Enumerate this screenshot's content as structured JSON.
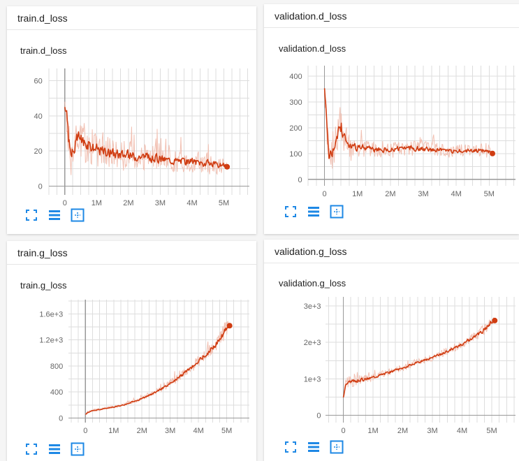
{
  "panels": [
    {
      "header": "train.d_loss",
      "chart_data": {
        "type": "line",
        "title": "train.d_loss",
        "xlim": [
          -500000,
          5800000
        ],
        "ylim": [
          -5,
          67
        ],
        "xticks": [
          0,
          1000000,
          2000000,
          3000000,
          4000000,
          5000000
        ],
        "xtick_labels": [
          "0",
          "1M",
          "2M",
          "3M",
          "4M",
          "5M"
        ],
        "yticks": [
          0,
          20,
          40,
          60
        ],
        "ytick_labels": [
          "0",
          "20",
          "40",
          "60"
        ],
        "grid": true,
        "series": [
          {
            "x": [
              0,
              50000,
              100000,
              150000,
              200000,
              300000,
              400000,
              500000,
              600000,
              700000,
              800000,
              900000,
              1000000,
              1200000,
              1400000,
              1600000,
              1800000,
              2000000,
              2200000,
              2400000,
              2600000,
              2800000,
              3000000,
              3200000,
              3400000,
              3600000,
              3800000,
              4000000,
              4200000,
              4400000,
              4600000,
              4800000,
              5000000,
              5100000
            ],
            "y": [
              46,
              40,
              30,
              20,
              17,
              22,
              28,
              27,
              25,
              24,
              23,
              22,
              21,
              20,
              19,
              18.5,
              18,
              17.5,
              17,
              17,
              16.5,
              16,
              15.5,
              15,
              14.5,
              14.5,
              14,
              14,
              13.5,
              13,
              12.5,
              12,
              11.5,
              11
            ],
            "noise": [
              2,
              10,
              12,
              12,
              10,
              10,
              9,
              9,
              9,
              8,
              8,
              8,
              8,
              7,
              7,
              7,
              7,
              7,
              6,
              6,
              6,
              6,
              6,
              5,
              5,
              5,
              5,
              5,
              5,
              5,
              5,
              4,
              4,
              2
            ],
            "color": "#d03d12"
          }
        ]
      }
    },
    {
      "header": "validation.d_loss",
      "chart_data": {
        "type": "line",
        "title": "validation.d_loss",
        "xlim": [
          -500000,
          5800000
        ],
        "ylim": [
          -25,
          440
        ],
        "xticks": [
          0,
          1000000,
          2000000,
          3000000,
          4000000,
          5000000
        ],
        "xtick_labels": [
          "0",
          "1M",
          "2M",
          "3M",
          "4M",
          "5M"
        ],
        "yticks": [
          0,
          100,
          200,
          300,
          400
        ],
        "ytick_labels": [
          "0",
          "100",
          "200",
          "300",
          "400"
        ],
        "grid": true,
        "series": [
          {
            "x": [
              0,
              50000,
              100000,
              150000,
              200000,
              300000,
              400000,
              500000,
              600000,
              700000,
              800000,
              900000,
              1000000,
              1200000,
              1400000,
              1600000,
              1800000,
              2000000,
              2200000,
              2400000,
              2600000,
              2800000,
              3000000,
              3200000,
              3400000,
              3600000,
              3800000,
              4000000,
              4200000,
              4400000,
              4600000,
              4800000,
              5000000,
              5100000
            ],
            "y": [
              350,
              250,
              150,
              90,
              80,
              130,
              180,
              200,
              160,
              140,
              130,
              125,
              125,
              120,
              118,
              115,
              115,
              115,
              118,
              120,
              122,
              120,
              118,
              115,
              115,
              113,
              110,
              108,
              110,
              112,
              110,
              112,
              108,
              100
            ],
            "noise": [
              10,
              60,
              80,
              80,
              70,
              70,
              70,
              80,
              60,
              50,
              45,
              40,
              35,
              30,
              28,
              26,
              25,
              25,
              25,
              25,
              24,
              23,
              22,
              22,
              21,
              20,
              20,
              20,
              20,
              20,
              20,
              20,
              20,
              5
            ],
            "color": "#d03d12"
          }
        ]
      }
    },
    {
      "header": "train.g_loss",
      "chart_data": {
        "type": "line",
        "title": "train.g_loss",
        "xlim": [
          -600000,
          5800000
        ],
        "ylim": [
          -70,
          1820
        ],
        "xticks": [
          0,
          1000000,
          2000000,
          3000000,
          4000000,
          5000000
        ],
        "xtick_labels": [
          "0",
          "1M",
          "2M",
          "3M",
          "4M",
          "5M"
        ],
        "yticks": [
          0,
          400,
          800,
          1200,
          1600
        ],
        "ytick_labels": [
          "0",
          "400",
          "800",
          "1.2e+3",
          "1.6e+3"
        ],
        "grid": true,
        "series": [
          {
            "x": [
              0,
              100000,
              200000,
              400000,
              600000,
              800000,
              1000000,
              1200000,
              1400000,
              1600000,
              1800000,
              2000000,
              2200000,
              2400000,
              2600000,
              2800000,
              3000000,
              3200000,
              3400000,
              3600000,
              3800000,
              4000000,
              4200000,
              4400000,
              4600000,
              4800000,
              4900000,
              5000000,
              5100000
            ],
            "y": [
              60,
              90,
              110,
              125,
              140,
              155,
              170,
              185,
              210,
              240,
              270,
              300,
              340,
              380,
              430,
              480,
              540,
              600,
              660,
              730,
              800,
              880,
              960,
              1040,
              1130,
              1240,
              1330,
              1400,
              1420
            ],
            "noise": [
              10,
              15,
              15,
              15,
              15,
              15,
              15,
              15,
              18,
              20,
              22,
              25,
              28,
              30,
              35,
              40,
              45,
              50,
              55,
              60,
              65,
              70,
              75,
              80,
              90,
              100,
              110,
              100,
              20
            ],
            "color": "#d03d12"
          }
        ]
      }
    },
    {
      "header": "validation.g_loss",
      "chart_data": {
        "type": "line",
        "title": "validation.g_loss",
        "xlim": [
          -600000,
          5800000
        ],
        "ylim": [
          -200,
          3250
        ],
        "xticks": [
          0,
          1000000,
          2000000,
          3000000,
          4000000,
          5000000
        ],
        "xtick_labels": [
          "0",
          "1M",
          "2M",
          "3M",
          "4M",
          "5M"
        ],
        "yticks": [
          0,
          1000,
          2000,
          3000
        ],
        "ytick_labels": [
          "0",
          "1e+3",
          "2e+3",
          "3e+3"
        ],
        "grid": true,
        "series": [
          {
            "x": [
              0,
              50000,
              100000,
              200000,
              300000,
              400000,
              600000,
              800000,
              1000000,
              1200000,
              1400000,
              1600000,
              1800000,
              2000000,
              2200000,
              2400000,
              2600000,
              2800000,
              3000000,
              3200000,
              3400000,
              3600000,
              3800000,
              4000000,
              4200000,
              4400000,
              4600000,
              4800000,
              5000000,
              5100000
            ],
            "y": [
              500,
              800,
              900,
              920,
              930,
              950,
              980,
              1000,
              1050,
              1100,
              1150,
              1200,
              1250,
              1300,
              1360,
              1420,
              1480,
              1530,
              1580,
              1650,
              1720,
              1800,
              1880,
              1960,
              2050,
              2150,
              2250,
              2400,
              2580,
              2600
            ],
            "noise": [
              20,
              150,
              150,
              130,
              120,
              110,
              100,
              90,
              90,
              80,
              80,
              75,
              70,
              70,
              70,
              70,
              70,
              70,
              70,
              75,
              80,
              80,
              85,
              90,
              95,
              100,
              110,
              130,
              120,
              40
            ],
            "color": "#d03d12"
          }
        ]
      }
    }
  ],
  "icons": [
    "fullscreen-icon",
    "list-icon",
    "fit-domain-icon"
  ],
  "colors": {
    "line": "#d03d12",
    "band": "#f0b6a6",
    "icon": "#1e88e5"
  }
}
